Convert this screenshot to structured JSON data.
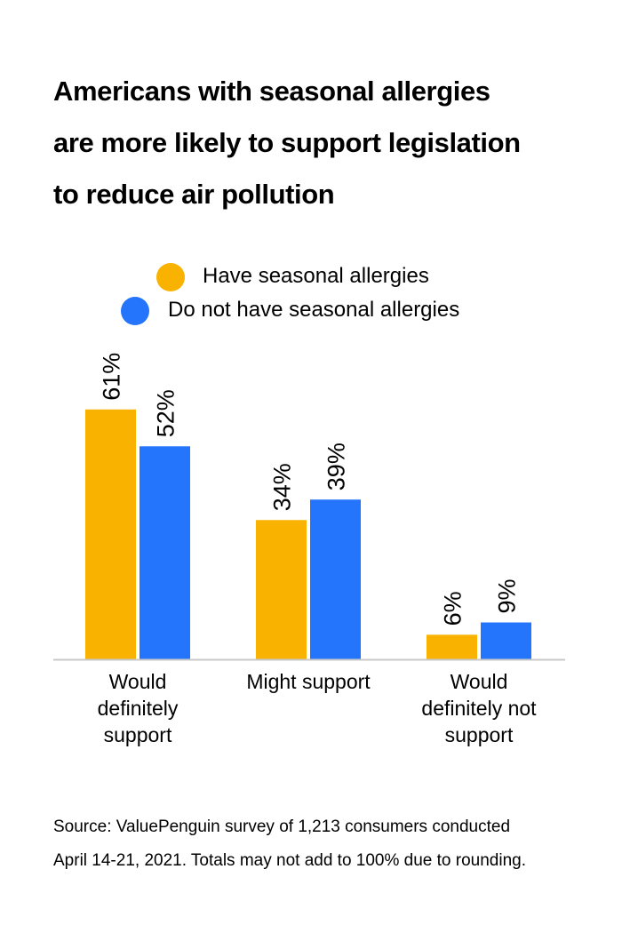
{
  "title_lines": [
    "Americans with seasonal allergies",
    "are more likely to support legislation",
    "to reduce air pollution"
  ],
  "source_lines": [
    "Source: ValuePenguin survey of 1,213 consumers conducted",
    "April 14-21, 2021. Totals may not add to 100% due to rounding."
  ],
  "colors": {
    "allergies": "#F9B200",
    "no_allergies": "#2575FC",
    "axis": "#c8c8c8"
  },
  "chart_data": {
    "type": "bar",
    "title": "Americans with seasonal allergies are more likely to support legislation to reduce air pollution",
    "xlabel": "",
    "ylabel": "",
    "ylim": [
      0,
      100
    ],
    "grid": false,
    "legend_position": "top-center",
    "categories": [
      [
        "Would",
        "definitely",
        "support"
      ],
      [
        "Might support"
      ],
      [
        "Would",
        "definitely not",
        "support"
      ]
    ],
    "series": [
      {
        "name": "Have seasonal allergies",
        "values": [
          61,
          34,
          6
        ],
        "labels": [
          "61%",
          "34%",
          "6%"
        ],
        "color": "#F9B200"
      },
      {
        "name": "Do not have seasonal allergies",
        "values": [
          52,
          39,
          9
        ],
        "labels": [
          "52%",
          "39%",
          "9%"
        ],
        "color": "#2575FC"
      }
    ]
  }
}
